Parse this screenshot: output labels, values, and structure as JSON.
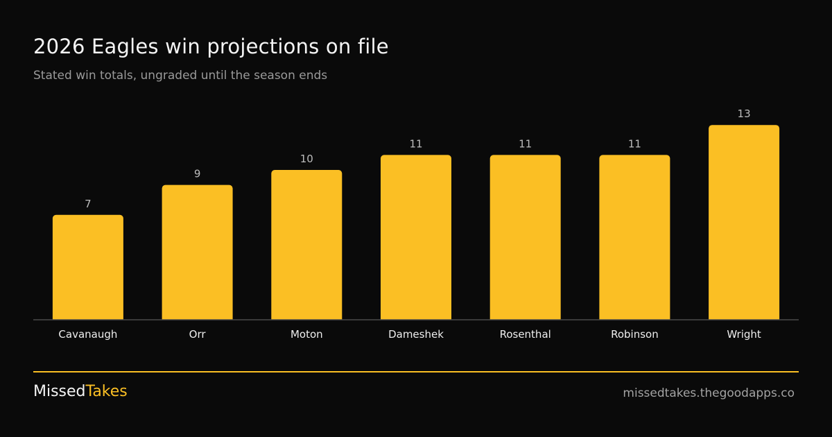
{
  "colors": {
    "background": "#0a0a0a",
    "bar": "#fbbf24",
    "accent": "#fbbf24",
    "axis": "#4a4a4a",
    "value_label": "#bdbdbd",
    "category_label": "#eeeeee"
  },
  "chart_data": {
    "type": "bar",
    "title": "2026 Eagles win projections on file",
    "subtitle": "Stated win totals, ungraded until the season ends",
    "categories": [
      "Cavanaugh",
      "Orr",
      "Moton",
      "Dameshek",
      "Rosenthal",
      "Robinson",
      "Wright"
    ],
    "values": [
      7,
      9,
      10,
      11,
      11,
      11,
      13
    ],
    "xlabel": "",
    "ylabel": "",
    "ylim": [
      0,
      14
    ],
    "grid": false,
    "legend": "none",
    "data_labels": true
  },
  "footer": {
    "brand_part1": "Missed",
    "brand_part2": "Takes",
    "site": "missedtakes.thegoodapps.co"
  }
}
